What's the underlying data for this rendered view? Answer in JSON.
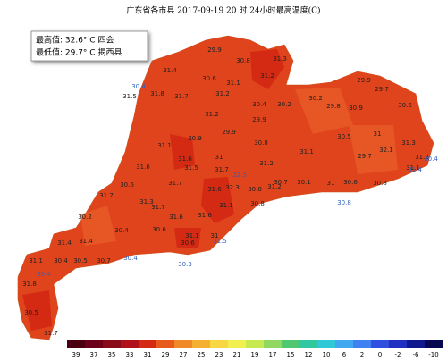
{
  "header": {
    "title": "广东省各市县 2017-09-19 20 时 24小时最高温度(C)"
  },
  "info": {
    "max": "最高值: 32.6° C 四会",
    "min": "最低值: 29.7° C 揭西县"
  },
  "labels": [
    "29.9",
    "30.8",
    "31.3",
    "31.4",
    "30.6",
    "31.1",
    "31.2",
    "30.4",
    "31.8",
    "31.5",
    "31.7",
    "31.2",
    "30.4",
    "30.2",
    "30.2",
    "29.8",
    "29.9",
    "29.7",
    "30.9",
    "30.6",
    "31.2",
    "29.9",
    "29.9",
    "30.9",
    "30.8",
    "31.1",
    "31.6",
    "31.5",
    "31",
    "31.2",
    "31.1",
    "30.5",
    "31",
    "31.3",
    "32.1",
    "31.2",
    "29.7",
    "31.1",
    "30.4",
    "31.6",
    "31.7",
    "31.7",
    "32.3",
    "30.6",
    "31.6",
    "31.2",
    "30.8",
    "30.7",
    "30.1",
    "31",
    "30.6",
    "30.8",
    "31.4",
    "31.3",
    "31.7",
    "31.7",
    "31.6",
    "31.6",
    "31.1",
    "32.3",
    "30.8",
    "30.8",
    "30.2",
    "31.4",
    "30.4",
    "30.6",
    "31.1",
    "30.6",
    "31",
    "31.5",
    "31.4",
    "31.1",
    "30.4",
    "30.5",
    "30.7",
    "30.4",
    "30.3",
    "30.4",
    "31.8",
    "30.5",
    "31.7"
  ],
  "legend": {
    "labels": [
      "39",
      "37",
      "35",
      "33",
      "31",
      "29",
      "27",
      "25",
      "23",
      "21",
      "19",
      "17",
      "15",
      "12",
      "10",
      "6",
      "2",
      "0",
      "-2",
      "-6",
      "-10"
    ],
    "colors": [
      "#4a0010",
      "#6b0018",
      "#8b0a1a",
      "#b0101a",
      "#d42a14",
      "#e85a1c",
      "#f08a28",
      "#f5b030",
      "#f7d840",
      "#f0f050",
      "#c8e850",
      "#90d860",
      "#50c870",
      "#30c8a0",
      "#30c8d8",
      "#40a8f0",
      "#4080f0",
      "#3050e0",
      "#2030c0",
      "#101890",
      "#080850"
    ]
  }
}
